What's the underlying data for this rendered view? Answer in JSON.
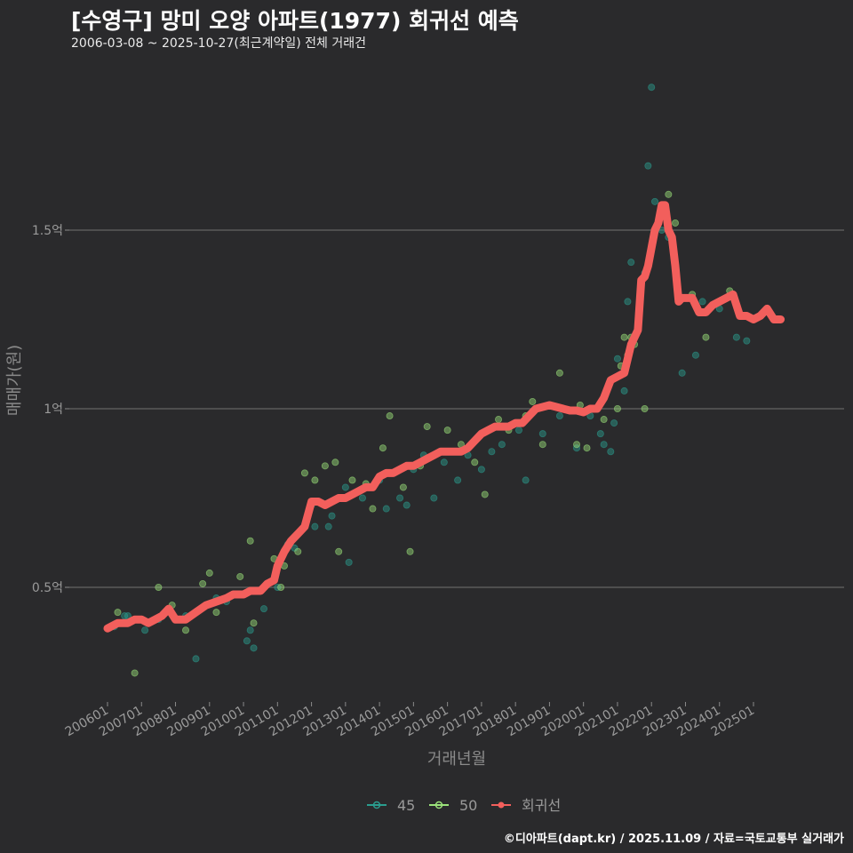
{
  "chart_data": {
    "type": "scatter",
    "title": "[수영구] 망미 오양 아파트(1977) 회귀선 예측",
    "subtitle": "2006-03-08 ~ 2025-10-27(최근계약일) 전체 거래건",
    "xlabel": "거래년월",
    "ylabel": "매매가(원)",
    "footer": "©디아파트(dapt.kr) / 2025.11.09 / 자료=국토교통부 실거래가",
    "x_range": [
      2006.0,
      2026.3
    ],
    "y_range": [
      0.18,
      2.0
    ],
    "x_ticks": [
      {
        "label": "200601",
        "value": 2006.0
      },
      {
        "label": "200701",
        "value": 2007.0
      },
      {
        "label": "200801",
        "value": 2008.0
      },
      {
        "label": "200901",
        "value": 2009.0
      },
      {
        "label": "201001",
        "value": 2010.0
      },
      {
        "label": "201101",
        "value": 2011.0
      },
      {
        "label": "201201",
        "value": 2012.0
      },
      {
        "label": "201301",
        "value": 2013.0
      },
      {
        "label": "201401",
        "value": 2014.0
      },
      {
        "label": "201501",
        "value": 2015.0
      },
      {
        "label": "201601",
        "value": 2016.0
      },
      {
        "label": "201701",
        "value": 2017.0
      },
      {
        "label": "201801",
        "value": 2018.0
      },
      {
        "label": "201901",
        "value": 2019.0
      },
      {
        "label": "202001",
        "value": 2020.0
      },
      {
        "label": "202101",
        "value": 2021.0
      },
      {
        "label": "202201",
        "value": 2022.0
      },
      {
        "label": "202301",
        "value": 2023.0
      },
      {
        "label": "202401",
        "value": 2024.0
      },
      {
        "label": "202501",
        "value": 2025.0
      }
    ],
    "y_ticks": [
      {
        "label": "0.5억",
        "value": 0.5
      },
      {
        "label": "1억",
        "value": 1.0
      },
      {
        "label": "1.5억",
        "value": 1.5
      }
    ],
    "legend": [
      {
        "name": "45",
        "color": "#2a9d8f"
      },
      {
        "name": "50",
        "color": "#9be27a"
      },
      {
        "name": "회귀선",
        "color": "#f25f5c"
      }
    ],
    "series": [
      {
        "name": "45",
        "color": "#2a9d8f",
        "points": [
          [
            2006.2,
            0.39
          ],
          [
            2006.5,
            0.42
          ],
          [
            2006.6,
            0.42
          ],
          [
            2007.1,
            0.38
          ],
          [
            2007.5,
            0.41
          ],
          [
            2008.0,
            0.41
          ],
          [
            2008.3,
            0.42
          ],
          [
            2008.6,
            0.3
          ],
          [
            2009.2,
            0.47
          ],
          [
            2009.5,
            0.46
          ],
          [
            2010.1,
            0.35
          ],
          [
            2010.2,
            0.38
          ],
          [
            2010.3,
            0.33
          ],
          [
            2010.6,
            0.44
          ],
          [
            2011.0,
            0.5
          ],
          [
            2011.3,
            0.62
          ],
          [
            2011.5,
            0.61
          ],
          [
            2012.0,
            0.73
          ],
          [
            2012.1,
            0.67
          ],
          [
            2012.5,
            0.67
          ],
          [
            2012.6,
            0.7
          ],
          [
            2013.0,
            0.78
          ],
          [
            2013.1,
            0.57
          ],
          [
            2013.5,
            0.75
          ],
          [
            2014.0,
            0.8
          ],
          [
            2014.2,
            0.72
          ],
          [
            2014.6,
            0.75
          ],
          [
            2014.8,
            0.73
          ],
          [
            2015.0,
            0.83
          ],
          [
            2015.3,
            0.87
          ],
          [
            2015.6,
            0.75
          ],
          [
            2015.9,
            0.85
          ],
          [
            2016.3,
            0.8
          ],
          [
            2016.6,
            0.87
          ],
          [
            2017.0,
            0.83
          ],
          [
            2017.3,
            0.88
          ],
          [
            2017.6,
            0.9
          ],
          [
            2018.1,
            0.94
          ],
          [
            2018.3,
            0.8
          ],
          [
            2018.8,
            0.93
          ],
          [
            2019.3,
            0.98
          ],
          [
            2019.8,
            0.89
          ],
          [
            2020.2,
            0.98
          ],
          [
            2020.5,
            0.93
          ],
          [
            2020.6,
            0.9
          ],
          [
            2020.8,
            0.88
          ],
          [
            2020.9,
            0.96
          ],
          [
            2021.0,
            1.14
          ],
          [
            2021.2,
            1.05
          ],
          [
            2021.3,
            1.3
          ],
          [
            2021.4,
            1.41
          ],
          [
            2021.8,
            1.38
          ],
          [
            2021.9,
            1.68
          ],
          [
            2022.0,
            1.9
          ],
          [
            2022.1,
            1.58
          ],
          [
            2022.3,
            1.5
          ],
          [
            2022.5,
            1.48
          ],
          [
            2022.9,
            1.1
          ],
          [
            2023.3,
            1.15
          ],
          [
            2023.5,
            1.3
          ],
          [
            2024.0,
            1.28
          ],
          [
            2024.5,
            1.2
          ],
          [
            2024.8,
            1.19
          ]
        ]
      },
      {
        "name": "50",
        "color": "#9be27a",
        "points": [
          [
            2006.3,
            0.43
          ],
          [
            2006.8,
            0.26
          ],
          [
            2007.5,
            0.5
          ],
          [
            2007.9,
            0.45
          ],
          [
            2008.3,
            0.38
          ],
          [
            2008.8,
            0.51
          ],
          [
            2009.0,
            0.54
          ],
          [
            2009.2,
            0.43
          ],
          [
            2009.9,
            0.53
          ],
          [
            2010.2,
            0.63
          ],
          [
            2010.3,
            0.4
          ],
          [
            2010.9,
            0.58
          ],
          [
            2011.1,
            0.5
          ],
          [
            2011.2,
            0.56
          ],
          [
            2011.6,
            0.6
          ],
          [
            2011.8,
            0.82
          ],
          [
            2012.1,
            0.8
          ],
          [
            2012.4,
            0.84
          ],
          [
            2012.7,
            0.85
          ],
          [
            2012.8,
            0.6
          ],
          [
            2013.2,
            0.8
          ],
          [
            2013.6,
            0.79
          ],
          [
            2013.8,
            0.72
          ],
          [
            2014.1,
            0.89
          ],
          [
            2014.3,
            0.98
          ],
          [
            2014.7,
            0.78
          ],
          [
            2014.9,
            0.6
          ],
          [
            2015.2,
            0.84
          ],
          [
            2015.4,
            0.95
          ],
          [
            2015.8,
            0.88
          ],
          [
            2016.0,
            0.94
          ],
          [
            2016.4,
            0.9
          ],
          [
            2016.8,
            0.85
          ],
          [
            2017.1,
            0.76
          ],
          [
            2017.5,
            0.97
          ],
          [
            2017.8,
            0.94
          ],
          [
            2018.3,
            0.98
          ],
          [
            2018.5,
            1.02
          ],
          [
            2018.8,
            0.9
          ],
          [
            2019.3,
            1.1
          ],
          [
            2019.8,
            0.9
          ],
          [
            2019.9,
            1.01
          ],
          [
            2020.1,
            0.89
          ],
          [
            2020.6,
            0.97
          ],
          [
            2021.0,
            1.0
          ],
          [
            2021.1,
            1.12
          ],
          [
            2021.2,
            1.2
          ],
          [
            2021.3,
            1.15
          ],
          [
            2021.4,
            1.2
          ],
          [
            2021.5,
            1.18
          ],
          [
            2021.8,
            1.0
          ],
          [
            2022.5,
            1.6
          ],
          [
            2022.7,
            1.52
          ],
          [
            2023.2,
            1.32
          ],
          [
            2023.6,
            1.2
          ],
          [
            2023.8,
            1.29
          ],
          [
            2024.3,
            1.33
          ]
        ]
      },
      {
        "name": "회귀선",
        "color": "#f25f5c",
        "points": [
          [
            2006.0,
            0.385
          ],
          [
            2006.3,
            0.4
          ],
          [
            2006.6,
            0.4
          ],
          [
            2006.8,
            0.41
          ],
          [
            2007.0,
            0.41
          ],
          [
            2007.2,
            0.4
          ],
          [
            2007.4,
            0.41
          ],
          [
            2007.6,
            0.42
          ],
          [
            2007.8,
            0.44
          ],
          [
            2008.0,
            0.41
          ],
          [
            2008.3,
            0.41
          ],
          [
            2008.6,
            0.43
          ],
          [
            2008.9,
            0.45
          ],
          [
            2009.2,
            0.46
          ],
          [
            2009.5,
            0.47
          ],
          [
            2009.7,
            0.48
          ],
          [
            2010.0,
            0.48
          ],
          [
            2010.2,
            0.49
          ],
          [
            2010.5,
            0.49
          ],
          [
            2010.7,
            0.51
          ],
          [
            2010.9,
            0.52
          ],
          [
            2011.0,
            0.56
          ],
          [
            2011.2,
            0.6
          ],
          [
            2011.4,
            0.63
          ],
          [
            2011.6,
            0.65
          ],
          [
            2011.8,
            0.67
          ],
          [
            2012.0,
            0.74
          ],
          [
            2012.2,
            0.74
          ],
          [
            2012.4,
            0.73
          ],
          [
            2012.6,
            0.74
          ],
          [
            2012.8,
            0.75
          ],
          [
            2013.0,
            0.75
          ],
          [
            2013.2,
            0.76
          ],
          [
            2013.4,
            0.77
          ],
          [
            2013.6,
            0.78
          ],
          [
            2013.8,
            0.78
          ],
          [
            2014.0,
            0.81
          ],
          [
            2014.2,
            0.82
          ],
          [
            2014.4,
            0.82
          ],
          [
            2014.6,
            0.83
          ],
          [
            2014.8,
            0.84
          ],
          [
            2015.0,
            0.84
          ],
          [
            2015.2,
            0.85
          ],
          [
            2015.4,
            0.86
          ],
          [
            2015.6,
            0.87
          ],
          [
            2015.8,
            0.88
          ],
          [
            2016.0,
            0.88
          ],
          [
            2016.2,
            0.88
          ],
          [
            2016.4,
            0.88
          ],
          [
            2016.6,
            0.89
          ],
          [
            2016.8,
            0.91
          ],
          [
            2017.0,
            0.93
          ],
          [
            2017.2,
            0.94
          ],
          [
            2017.4,
            0.95
          ],
          [
            2017.6,
            0.95
          ],
          [
            2017.8,
            0.95
          ],
          [
            2018.0,
            0.96
          ],
          [
            2018.2,
            0.96
          ],
          [
            2018.4,
            0.98
          ],
          [
            2018.6,
            1.0
          ],
          [
            2018.8,
            1.005
          ],
          [
            2019.0,
            1.01
          ],
          [
            2019.2,
            1.005
          ],
          [
            2019.4,
            1.0
          ],
          [
            2019.6,
            0.995
          ],
          [
            2019.8,
            0.995
          ],
          [
            2020.0,
            0.99
          ],
          [
            2020.2,
            1.0
          ],
          [
            2020.4,
            1.0
          ],
          [
            2020.6,
            1.03
          ],
          [
            2020.8,
            1.08
          ],
          [
            2021.0,
            1.09
          ],
          [
            2021.2,
            1.1
          ],
          [
            2021.4,
            1.18
          ],
          [
            2021.6,
            1.22
          ],
          [
            2021.7,
            1.36
          ],
          [
            2021.8,
            1.37
          ],
          [
            2021.9,
            1.4
          ],
          [
            2022.0,
            1.45
          ],
          [
            2022.1,
            1.5
          ],
          [
            2022.2,
            1.52
          ],
          [
            2022.3,
            1.57
          ],
          [
            2022.4,
            1.57
          ],
          [
            2022.5,
            1.5
          ],
          [
            2022.6,
            1.48
          ],
          [
            2022.7,
            1.4
          ],
          [
            2022.8,
            1.3
          ],
          [
            2022.9,
            1.31
          ],
          [
            2023.0,
            1.31
          ],
          [
            2023.2,
            1.31
          ],
          [
            2023.4,
            1.27
          ],
          [
            2023.6,
            1.27
          ],
          [
            2023.8,
            1.29
          ],
          [
            2024.0,
            1.3
          ],
          [
            2024.2,
            1.31
          ],
          [
            2024.4,
            1.32
          ],
          [
            2024.6,
            1.26
          ],
          [
            2024.8,
            1.26
          ],
          [
            2025.0,
            1.25
          ],
          [
            2025.2,
            1.26
          ],
          [
            2025.4,
            1.28
          ],
          [
            2025.6,
            1.25
          ],
          [
            2025.8,
            1.25
          ]
        ]
      }
    ]
  }
}
